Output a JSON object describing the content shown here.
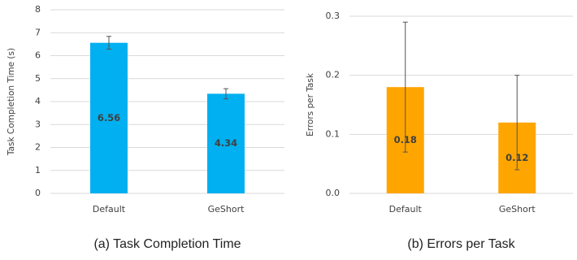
{
  "chart_data": [
    {
      "type": "bar",
      "caption": "(a) Task Completion Time",
      "y_label": "Task Completion Time (s)",
      "categories": [
        "Default",
        "GeShort"
      ],
      "values": [
        6.56,
        4.34
      ],
      "errors": [
        0.28,
        0.22
      ],
      "color": "#00b0f0",
      "ylim": [
        0,
        8
      ],
      "yticks": [
        0,
        1,
        2,
        3,
        4,
        5,
        6,
        7,
        8
      ],
      "grid": true
    },
    {
      "type": "bar",
      "caption": "(b) Errors per Task",
      "y_label": "Errors per Task",
      "categories": [
        "Default",
        "GeShort"
      ],
      "values": [
        0.18,
        0.12
      ],
      "errors": [
        0.11,
        0.08
      ],
      "color": "#ffa500",
      "ylim": [
        0,
        0.3
      ],
      "yticks": [
        {
          "value": 0,
          "label": "0.0"
        },
        0.1,
        0.2,
        0.3
      ],
      "grid": true
    }
  ]
}
